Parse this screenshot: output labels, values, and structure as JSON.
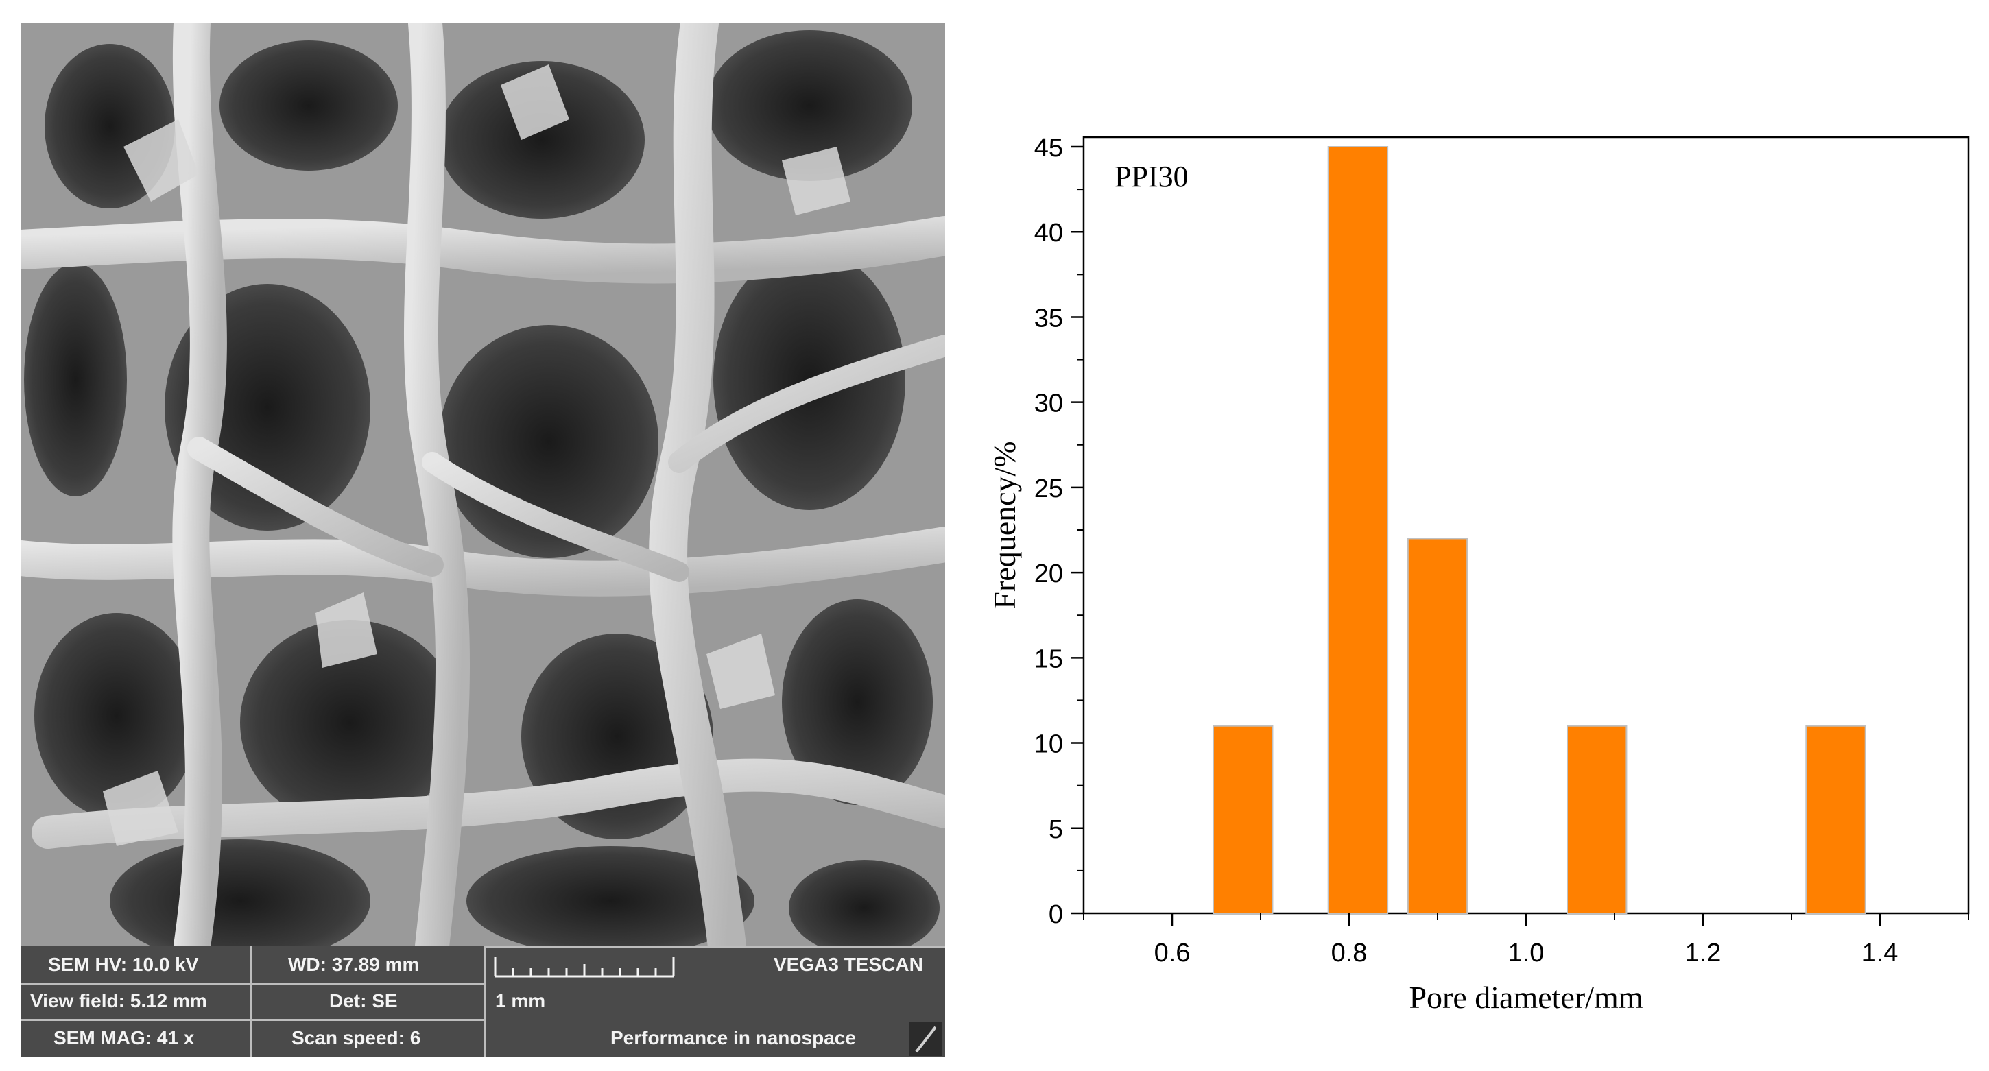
{
  "sem_panel": {
    "hv_label": "SEM HV: 10.0 kV",
    "wd_label": "WD: 37.89 mm",
    "brand_label": "VEGA3 TESCAN",
    "view_field_label": "View field: 5.12 mm",
    "det_label": "Det: SE",
    "scale_label": "1 mm",
    "mag_label": "SEM MAG: 41 x",
    "scan_speed_label": "Scan speed: 6",
    "tagline": "Performance in nanospace"
  },
  "chart_data": {
    "type": "bar",
    "annotation": "PPI30",
    "xlabel": "Pore diameter/mm",
    "ylabel": "Frequency/%",
    "xlim": [
      0.5,
      1.5
    ],
    "ylim": [
      0,
      45
    ],
    "x_ticks": [
      "0.6",
      "0.8",
      "1.0",
      "1.2",
      "1.4"
    ],
    "y_ticks": [
      "0",
      "5",
      "10",
      "15",
      "20",
      "25",
      "30",
      "35",
      "40",
      "45"
    ],
    "bars": [
      {
        "x": 0.68,
        "width": 0.067,
        "value": 11
      },
      {
        "x": 0.81,
        "width": 0.067,
        "value": 45
      },
      {
        "x": 0.9,
        "width": 0.067,
        "value": 22
      },
      {
        "x": 1.08,
        "width": 0.067,
        "value": 11
      },
      {
        "x": 1.35,
        "width": 0.067,
        "value": 11
      }
    ],
    "bar_color": "#ff8000",
    "bar_edge_color": "#c0c0c0",
    "grid": false
  }
}
